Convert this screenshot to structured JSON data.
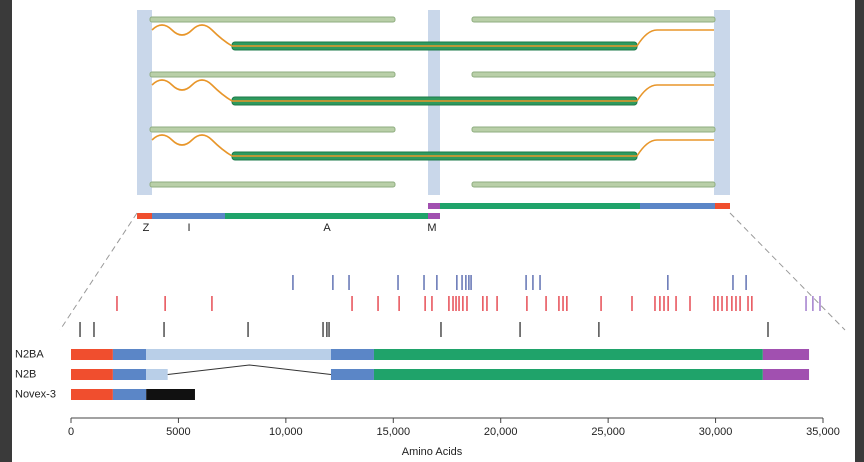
{
  "chart_data": {
    "type": "isoforms",
    "sarcomere_labels": [
      "Z",
      "I",
      "A",
      "M"
    ],
    "xlabel": "Amino Acids",
    "xlim": [
      0,
      35000
    ],
    "xticks": [
      0,
      5000,
      {
        "value": 10000,
        "label": "10,000"
      },
      {
        "value": 15000,
        "label": "15,000"
      },
      {
        "value": 20000,
        "label": "20,000"
      },
      {
        "value": 25000,
        "label": "25,000"
      },
      {
        "value": 30000,
        "label": "30,000"
      },
      {
        "value": 35000,
        "label": "35,000"
      }
    ],
    "variant_rows": [
      {
        "color": "#3a4fa0",
        "positions": [
          10330,
          12190,
          12940,
          15220,
          16430,
          17030,
          17960,
          18200,
          18380,
          18520,
          18620,
          21180,
          21500,
          21830,
          27780,
          30810,
          31420
        ]
      },
      {
        "color": "#e0202a",
        "positions": [
          2140,
          4380,
          6560,
          13080,
          14290,
          15270,
          16480,
          16800,
          17590,
          17780,
          17920,
          18060,
          18240,
          18430,
          19170,
          19360,
          19830,
          21220,
          22110,
          22710,
          22900,
          23080,
          24670,
          26110,
          27180,
          27410,
          27600,
          27790,
          28160,
          28810,
          29930,
          30110,
          30300,
          30530,
          30760,
          30950,
          31140,
          31510,
          31690
        ]
      },
      {
        "color": "#8a5cc0",
        "positions": [
          34210,
          34530,
          34860
        ]
      },
      {
        "color": "#222222",
        "positions": [
          420,
          1070,
          4330,
          8240,
          11730,
          11910,
          12010,
          17220,
          20900,
          24570,
          32440
        ]
      }
    ],
    "isoforms": [
      {
        "name": "N2BA",
        "segments": [
          {
            "start": 0,
            "end": 1950,
            "color": "#f04e2e"
          },
          {
            "start": 1950,
            "end": 3500,
            "color": "#5b86c7"
          },
          {
            "start": 3500,
            "end": 12100,
            "color": "#b9cfe8"
          },
          {
            "start": 12100,
            "end": 14100,
            "color": "#5b86c7"
          },
          {
            "start": 14100,
            "end": 32200,
            "color": "#1fa36a"
          },
          {
            "start": 32200,
            "end": 34350,
            "color": "#a150b0"
          }
        ]
      },
      {
        "name": "N2B",
        "segments": [
          {
            "start": 0,
            "end": 1950,
            "color": "#f04e2e"
          },
          {
            "start": 1950,
            "end": 3500,
            "color": "#5b86c7"
          },
          {
            "start": 3500,
            "end": 4500,
            "color": "#b9cfe8"
          },
          {
            "start": 12100,
            "end": 14100,
            "color": "#5b86c7"
          },
          {
            "start": 14100,
            "end": 32200,
            "color": "#1fa36a"
          },
          {
            "start": 32200,
            "end": 34350,
            "color": "#a150b0"
          }
        ]
      },
      {
        "name": "Novex-3",
        "segments": [
          {
            "start": 0,
            "end": 1950,
            "color": "#f04e2e"
          },
          {
            "start": 1950,
            "end": 3500,
            "color": "#5b86c7"
          },
          {
            "start": 3500,
            "end": 5770,
            "color": "#111111"
          }
        ]
      }
    ]
  }
}
